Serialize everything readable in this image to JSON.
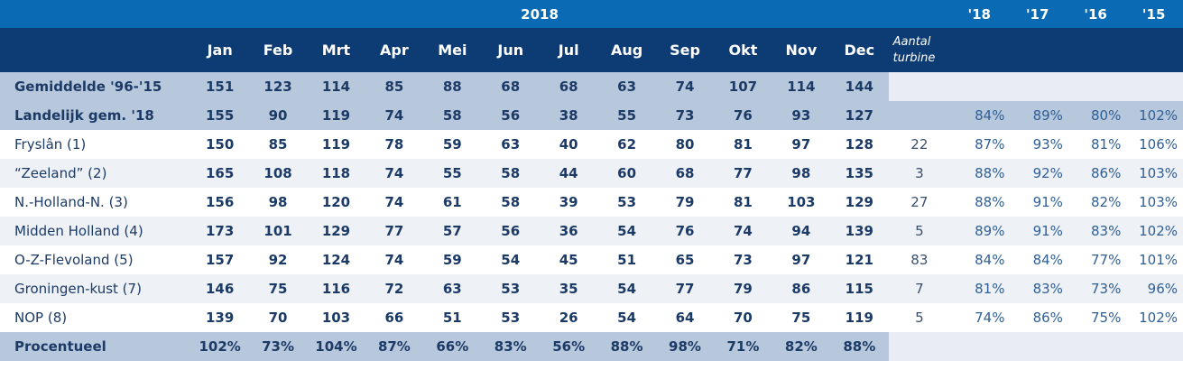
{
  "header": {
    "year": "2018",
    "prev_years": [
      "'18",
      "'17",
      "'16",
      "'15"
    ],
    "months": [
      "Jan",
      "Feb",
      "Mrt",
      "Apr",
      "Mei",
      "Jun",
      "Jul",
      "Aug",
      "Sep",
      "Okt",
      "Nov",
      "Dec"
    ],
    "count_line1": "Aantal",
    "count_line2": "turbine"
  },
  "rows": {
    "average": {
      "label": "Gemiddelde '96-'15",
      "values": [
        "151",
        "123",
        "114",
        "85",
        "88",
        "68",
        "68",
        "63",
        "74",
        "107",
        "114",
        "144"
      ]
    },
    "national": {
      "label": "Landelijk gem. '18",
      "values": [
        "155",
        "90",
        "119",
        "74",
        "58",
        "56",
        "38",
        "55",
        "73",
        "76",
        "93",
        "127"
      ],
      "pct": [
        "84%",
        "89%",
        "80%",
        "102%"
      ]
    },
    "regions": [
      {
        "label": "Fryslân (1)",
        "values": [
          "150",
          "85",
          "119",
          "78",
          "59",
          "63",
          "40",
          "62",
          "80",
          "81",
          "97",
          "128"
        ],
        "count": "22",
        "pct": [
          "87%",
          "93%",
          "81%",
          "106%"
        ]
      },
      {
        "label": "“Zeeland” (2)",
        "values": [
          "165",
          "108",
          "118",
          "74",
          "55",
          "58",
          "44",
          "60",
          "68",
          "77",
          "98",
          "135"
        ],
        "count": "3",
        "pct": [
          "88%",
          "92%",
          "86%",
          "103%"
        ]
      },
      {
        "label": "N.-Holland-N. (3)",
        "values": [
          "156",
          "98",
          "120",
          "74",
          "61",
          "58",
          "39",
          "53",
          "79",
          "81",
          "103",
          "129"
        ],
        "count": "27",
        "pct": [
          "88%",
          "91%",
          "82%",
          "103%"
        ]
      },
      {
        "label": "Midden Holland (4)",
        "values": [
          "173",
          "101",
          "129",
          "77",
          "57",
          "56",
          "36",
          "54",
          "76",
          "74",
          "94",
          "139"
        ],
        "count": "5",
        "pct": [
          "89%",
          "91%",
          "83%",
          "102%"
        ]
      },
      {
        "label": "O-Z-Flevoland (5)",
        "values": [
          "157",
          "92",
          "124",
          "74",
          "59",
          "54",
          "45",
          "51",
          "65",
          "73",
          "97",
          "121"
        ],
        "count": "83",
        "pct": [
          "84%",
          "84%",
          "77%",
          "101%"
        ]
      },
      {
        "label": "Groningen-kust (7)",
        "values": [
          "146",
          "75",
          "116",
          "72",
          "63",
          "53",
          "35",
          "54",
          "77",
          "79",
          "86",
          "115"
        ],
        "count": "7",
        "pct": [
          "81%",
          "83%",
          "73%",
          "96%"
        ]
      },
      {
        "label": "NOP (8)",
        "values": [
          "139",
          "70",
          "103",
          "66",
          "51",
          "53",
          "26",
          "54",
          "64",
          "70",
          "75",
          "119"
        ],
        "count": "5",
        "pct": [
          "74%",
          "86%",
          "75%",
          "102%"
        ]
      }
    ],
    "total": {
      "label": "Procentueel",
      "values": [
        "102%",
        "73%",
        "104%",
        "87%",
        "66%",
        "83%",
        "56%",
        "88%",
        "98%",
        "71%",
        "82%",
        "88%"
      ]
    }
  }
}
